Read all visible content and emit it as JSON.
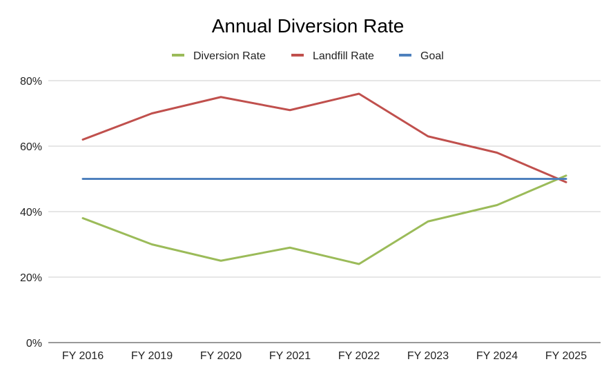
{
  "chart_data": {
    "type": "line",
    "title": "Annual Diversion Rate",
    "xlabel": "",
    "ylabel": "",
    "categories": [
      "FY 2016",
      "FY 2019",
      "FY 2020",
      "FY 2021",
      "FY 2022",
      "FY 2023",
      "FY 2024",
      "FY 2025"
    ],
    "ylim": [
      0,
      0.8
    ],
    "yticks": [
      0,
      0.2,
      0.4,
      0.6,
      0.8
    ],
    "ytick_labels": [
      "0%",
      "20%",
      "40%",
      "60%",
      "80%"
    ],
    "grid": true,
    "legend_position": "top",
    "series": [
      {
        "name": "Diversion Rate",
        "color": "#9bbb59",
        "values": [
          0.38,
          0.3,
          0.25,
          0.29,
          0.24,
          0.37,
          0.42,
          0.51
        ]
      },
      {
        "name": "Landfill Rate",
        "color": "#c0504d",
        "values": [
          0.62,
          0.7,
          0.75,
          0.71,
          0.76,
          0.63,
          0.58,
          0.49
        ]
      },
      {
        "name": "Goal",
        "color": "#4f81bd",
        "values": [
          0.5,
          0.5,
          0.5,
          0.5,
          0.5,
          0.5,
          0.5,
          0.5
        ]
      }
    ]
  }
}
